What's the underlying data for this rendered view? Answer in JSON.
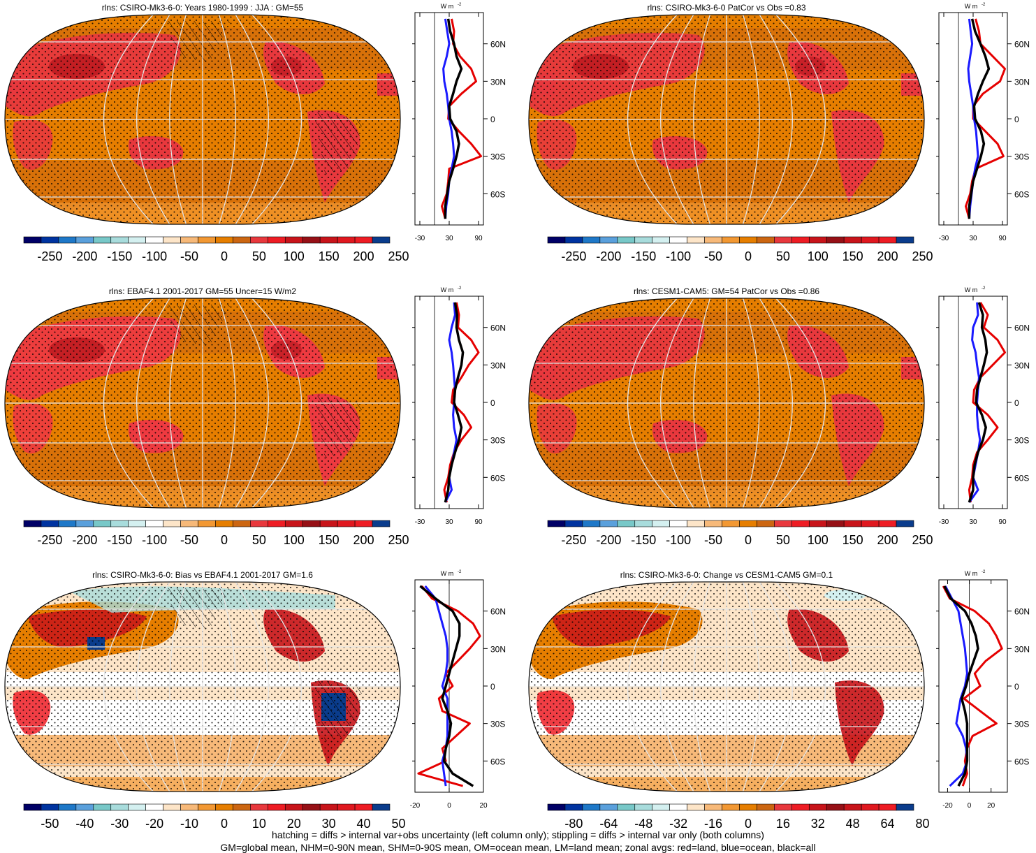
{
  "figure": {
    "footer_line1": "hatching = diffs > internal var+obs uncertainty (left column only); stippling = diffs > internal var only (both columns)",
    "footer_line2": "GM=global mean, NHM=0-90N mean, SHM=0-90S mean, OM=ocean mean, LM=land mean; zonal avgs: red=land, blue=ocean, black=all",
    "units_label": "W m",
    "units_exponent": "-2",
    "lat_labels": [
      "60N",
      "30N",
      "0",
      "30S",
      "60S"
    ]
  },
  "colors": {
    "ocean_fill": "#e67e00",
    "land_hot": "#e8383d",
    "land_very_hot": "#b3131a",
    "grid": "#e6e6e6",
    "zonal_land": "#e50000",
    "zonal_ocean": "#1a1aff",
    "zonal_all": "#000000",
    "stipple": "#000000"
  },
  "chart_data": [
    {
      "type": "heatmap",
      "id": "model-climatology",
      "title": "rlns: CSIRO-Mk3-6-0: Years 1980-1999 : JJA : GM=55",
      "projection": "Robinson",
      "colorbar": {
        "colors": [
          "#000066",
          "#0033a0",
          "#1e78c8",
          "#5aa0dc",
          "#78c8c8",
          "#a8dcdc",
          "#d4f0f0",
          "#ffffff",
          "#fde5c8",
          "#f7b979",
          "#f29833",
          "#e67e00",
          "#cc6611",
          "#e8383d",
          "#ee1c24",
          "#c8141a",
          "#961016",
          "#c8141a",
          "#e0181f",
          "#ee1c24",
          "#0a3c8c"
        ],
        "tick_labels": [
          "-250",
          "-200",
          "-150",
          "-100",
          "-50",
          "0",
          "50",
          "100",
          "150",
          "200",
          "250"
        ]
      },
      "zonal": {
        "xticks": [
          "-30",
          "30",
          "90"
        ],
        "xlim": [
          -40,
          100
        ],
        "ref_line": 0,
        "lat": [
          80,
          70,
          60,
          50,
          40,
          30,
          20,
          10,
          0,
          -10,
          -20,
          -30,
          -40,
          -50,
          -60,
          -70,
          -80
        ],
        "land": [
          35,
          40,
          38,
          52,
          75,
          85,
          55,
          30,
          28,
          50,
          75,
          95,
          30,
          28,
          25,
          15,
          22
        ],
        "ocean": [
          22,
          26,
          30,
          25,
          18,
          20,
          25,
          28,
          30,
          35,
          38,
          40,
          35,
          30,
          28,
          24,
          22
        ],
        "all": [
          28,
          32,
          40,
          45,
          55,
          45,
          38,
          30,
          32,
          45,
          50,
          45,
          38,
          30,
          26,
          22,
          22
        ]
      }
    },
    {
      "type": "heatmap",
      "id": "model-patcor",
      "title": "rlns: CSIRO-Mk3-6-0 PatCor vs Obs =0.83",
      "projection": "Robinson",
      "colorbar": {
        "colors": [
          "#000066",
          "#0033a0",
          "#1e78c8",
          "#5aa0dc",
          "#78c8c8",
          "#a8dcdc",
          "#d4f0f0",
          "#ffffff",
          "#fde5c8",
          "#f7b979",
          "#f29833",
          "#e67e00",
          "#cc6611",
          "#e8383d",
          "#ee1c24",
          "#c8141a",
          "#961016",
          "#c8141a",
          "#e0181f",
          "#ee1c24",
          "#0a3c8c"
        ],
        "tick_labels": [
          "-250",
          "-200",
          "-150",
          "-100",
          "-50",
          "0",
          "50",
          "100",
          "150",
          "200",
          "250"
        ]
      },
      "zonal": {
        "xticks": [
          "-30",
          "30",
          "90"
        ],
        "xlim": [
          -40,
          100
        ],
        "ref_line": 0,
        "lat": [
          80,
          70,
          60,
          50,
          40,
          30,
          20,
          10,
          0,
          -10,
          -20,
          -30,
          -40,
          -50,
          -60,
          -70,
          -80
        ],
        "land": [
          35,
          42,
          45,
          70,
          95,
          85,
          50,
          30,
          30,
          55,
          80,
          92,
          35,
          28,
          24,
          15,
          22
        ],
        "ocean": [
          22,
          25,
          28,
          24,
          20,
          22,
          26,
          30,
          32,
          36,
          38,
          40,
          34,
          30,
          27,
          24,
          22
        ],
        "all": [
          28,
          34,
          45,
          55,
          62,
          50,
          40,
          32,
          34,
          46,
          52,
          46,
          38,
          30,
          26,
          22,
          22
        ]
      }
    },
    {
      "type": "heatmap",
      "id": "obs-climatology",
      "title": "rlns: EBAF4.1 2001-2017 GM=55 Uncer=15 W/m2",
      "projection": "Robinson",
      "colorbar": {
        "colors": [
          "#000066",
          "#0033a0",
          "#1e78c8",
          "#5aa0dc",
          "#78c8c8",
          "#a8dcdc",
          "#d4f0f0",
          "#ffffff",
          "#fde5c8",
          "#f7b979",
          "#f29833",
          "#e67e00",
          "#cc6611",
          "#e8383d",
          "#ee1c24",
          "#c8141a",
          "#961016",
          "#c8141a",
          "#e0181f",
          "#ee1c24",
          "#0a3c8c"
        ],
        "tick_labels": [
          "-250",
          "-200",
          "-150",
          "-100",
          "-50",
          "0",
          "50",
          "100",
          "150",
          "200",
          "250"
        ]
      },
      "zonal": {
        "xticks": [
          "-30",
          "30",
          "90"
        ],
        "xlim": [
          -40,
          100
        ],
        "ref_line": 0,
        "lat": [
          80,
          70,
          60,
          50,
          40,
          30,
          20,
          10,
          0,
          -10,
          -20,
          -30,
          -40,
          -50,
          -60,
          -70,
          -80
        ],
        "land": [
          45,
          50,
          48,
          75,
          90,
          70,
          55,
          38,
          35,
          60,
          75,
          55,
          40,
          32,
          28,
          20,
          25
        ],
        "ocean": [
          40,
          42,
          35,
          30,
          35,
          38,
          40,
          42,
          40,
          38,
          40,
          45,
          40,
          35,
          30,
          35,
          22
        ],
        "all": [
          42,
          46,
          45,
          50,
          58,
          55,
          48,
          42,
          40,
          48,
          55,
          50,
          42,
          35,
          30,
          28,
          22
        ]
      }
    },
    {
      "type": "heatmap",
      "id": "other-model-patcor",
      "title": "rlns: CESM1-CAM5: GM=54 PatCor vs Obs =0.86",
      "projection": "Robinson",
      "colorbar": {
        "colors": [
          "#000066",
          "#0033a0",
          "#1e78c8",
          "#5aa0dc",
          "#78c8c8",
          "#a8dcdc",
          "#d4f0f0",
          "#ffffff",
          "#fde5c8",
          "#f7b979",
          "#f29833",
          "#e67e00",
          "#cc6611",
          "#e8383d",
          "#ee1c24",
          "#c8141a",
          "#961016",
          "#c8141a",
          "#e0181f",
          "#ee1c24",
          "#0a3c8c"
        ],
        "tick_labels": [
          "-250",
          "-200",
          "-150",
          "-100",
          "-50",
          "0",
          "50",
          "100",
          "150",
          "200",
          "250"
        ]
      },
      "zonal": {
        "xticks": [
          "-30",
          "30",
          "90"
        ],
        "xlim": [
          -40,
          100
        ],
        "ref_line": 0,
        "lat": [
          80,
          70,
          60,
          50,
          40,
          30,
          20,
          10,
          0,
          -10,
          -20,
          -30,
          -40,
          -50,
          -60,
          -70,
          -80
        ],
        "land": [
          45,
          60,
          52,
          80,
          95,
          70,
          45,
          32,
          30,
          60,
          80,
          60,
          38,
          30,
          28,
          22,
          25
        ],
        "ocean": [
          38,
          40,
          30,
          28,
          35,
          38,
          42,
          40,
          38,
          38,
          40,
          44,
          40,
          35,
          30,
          40,
          22
        ],
        "all": [
          42,
          50,
          48,
          55,
          58,
          52,
          45,
          38,
          36,
          48,
          56,
          50,
          40,
          33,
          30,
          30,
          22
        ]
      }
    },
    {
      "type": "heatmap",
      "id": "bias",
      "title": "rlns: CSIRO-Mk3-6-0: Bias vs EBAF4.1 2001-2017 GM=1.6",
      "projection": "Robinson",
      "colorbar": {
        "colors": [
          "#000066",
          "#0033a0",
          "#1e78c8",
          "#5aa0dc",
          "#78c8c8",
          "#a8dcdc",
          "#d4f0f0",
          "#ffffff",
          "#fde5c8",
          "#f7b979",
          "#f29833",
          "#e67e00",
          "#cc6611",
          "#e8383d",
          "#ee1c24",
          "#c8141a",
          "#961016",
          "#c8141a",
          "#e0181f",
          "#ee1c24",
          "#0a3c8c"
        ],
        "tick_labels": [
          "-50",
          "-40",
          "-30",
          "-20",
          "-10",
          "0",
          "10",
          "20",
          "30",
          "40",
          "50"
        ]
      },
      "zonal": {
        "xticks": [
          "-20",
          "0",
          "20"
        ],
        "xlim": [
          -20,
          20
        ],
        "ref_line": 0,
        "lat": [
          80,
          70,
          60,
          50,
          40,
          30,
          20,
          10,
          0,
          -10,
          -20,
          -30,
          -40,
          -50,
          -60,
          -70,
          -80
        ],
        "land": [
          -16,
          -10,
          5,
          14,
          18,
          12,
          5,
          -2,
          2,
          -6,
          -4,
          12,
          4,
          -4,
          -2,
          -18,
          8
        ],
        "ocean": [
          -14,
          -8,
          -6,
          -4,
          -2,
          -1,
          -1,
          -2,
          -4,
          -1,
          -1,
          -1,
          -1,
          -2,
          -4,
          -3,
          -2
        ],
        "all": [
          -17,
          -8,
          2,
          6,
          6,
          4,
          2,
          0,
          -2,
          -4,
          -1,
          1,
          0,
          -2,
          -3,
          2,
          14
        ]
      }
    },
    {
      "type": "heatmap",
      "id": "change",
      "title": "rlns: CSIRO-Mk3-6-0: Change vs CESM1-CAM5 GM=0.1",
      "projection": "Robinson",
      "colorbar": {
        "colors": [
          "#000066",
          "#0033a0",
          "#1e78c8",
          "#5aa0dc",
          "#78c8c8",
          "#a8dcdc",
          "#d4f0f0",
          "#ffffff",
          "#fde5c8",
          "#f7b979",
          "#f29833",
          "#e67e00",
          "#cc6611",
          "#e8383d",
          "#ee1c24",
          "#c8141a",
          "#961016",
          "#c8141a",
          "#e0181f",
          "#ee1c24",
          "#0a3c8c"
        ],
        "tick_labels": [
          "-80",
          "-64",
          "-48",
          "-32",
          "-16",
          "0",
          "16",
          "32",
          "48",
          "64",
          "80"
        ]
      },
      "zonal": {
        "xticks": [
          "-20",
          "0",
          "20"
        ],
        "xlim": [
          -28,
          35
        ],
        "ref_line": 0,
        "lat": [
          80,
          70,
          60,
          50,
          40,
          30,
          20,
          10,
          0,
          -10,
          -20,
          -30,
          -40,
          -50,
          -60,
          -70,
          -80
        ],
        "land": [
          -24,
          -18,
          5,
          18,
          25,
          30,
          15,
          5,
          10,
          -5,
          10,
          25,
          3,
          -2,
          -4,
          -2,
          -6
        ],
        "ocean": [
          -22,
          -16,
          -10,
          -8,
          -6,
          -4,
          -3,
          -2,
          -4,
          -8,
          -10,
          -12,
          -6,
          -3,
          -2,
          -6,
          -18
        ],
        "all": [
          -23,
          -17,
          -4,
          2,
          6,
          8,
          4,
          0,
          -3,
          -7,
          -4,
          -2,
          -2,
          -2,
          -2,
          -4,
          -10
        ]
      }
    }
  ]
}
